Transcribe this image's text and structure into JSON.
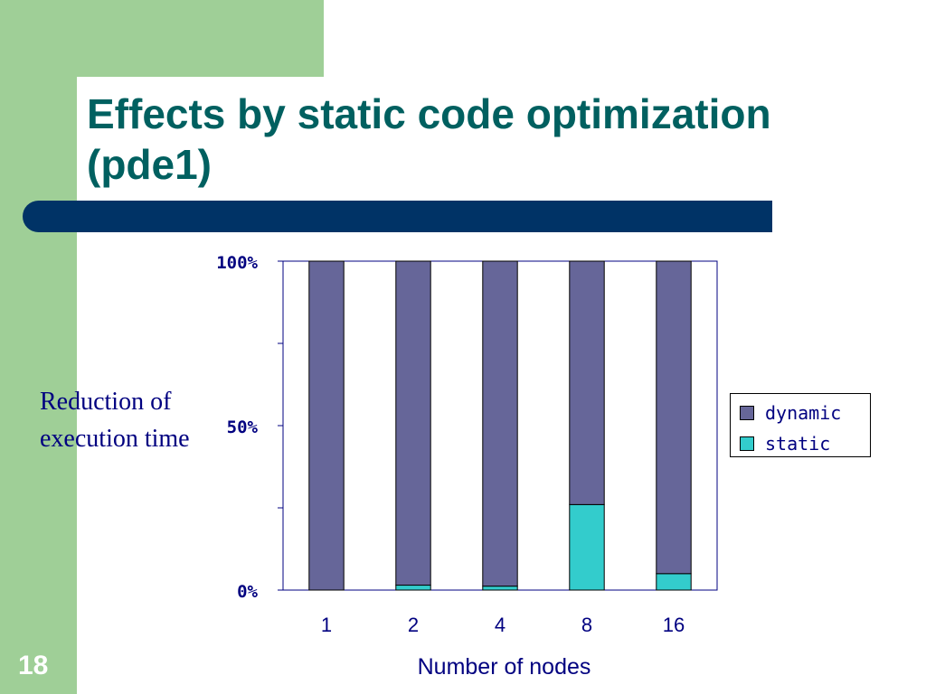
{
  "slide": {
    "title": "Effects by static code optimization (pde1)",
    "side_label": "Reduction of execution time",
    "page_number": "18",
    "colors": {
      "green_frame": "#9fcf97",
      "rule": "#003366",
      "title": "#006060",
      "text": "#000080"
    }
  },
  "chart_data": {
    "type": "bar",
    "stacked": true,
    "categories": [
      "1",
      "2",
      "4",
      "8",
      "16"
    ],
    "series": [
      {
        "name": "static",
        "color": "#33cccc",
        "values": [
          0,
          1.5,
          1.2,
          26,
          5
        ]
      },
      {
        "name": "dynamic",
        "color": "#666699",
        "values": [
          100,
          98.5,
          98.8,
          74,
          95
        ]
      }
    ],
    "xlabel": "Number of nodes",
    "ylabel": "",
    "ylim": [
      0,
      100
    ],
    "yticks": [
      "0%",
      "50%",
      "100%"
    ],
    "legend": {
      "position": "right",
      "entries": [
        "dynamic",
        "static"
      ]
    },
    "grid": false
  }
}
